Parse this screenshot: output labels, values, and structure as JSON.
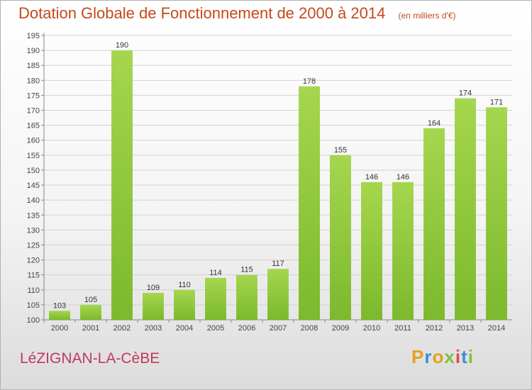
{
  "header": {
    "title": "Dotation Globale de Fonctionnement de 2000 à 2014",
    "unit": "(en milliers d'€)"
  },
  "footer": {
    "commune": "LéZIGNAN-LA-CèBE",
    "brand": "Proxiti",
    "brand_colors": [
      "#e2a21b",
      "#3a8fd6",
      "#e2a21b",
      "#7cc242",
      "#e34a4a",
      "#3a8fd6",
      "#7cc242"
    ]
  },
  "colors": {
    "bar": "#7cb92c",
    "bar_top": "#a5d64e",
    "title": "#c44a1a",
    "commune": "#c0395e"
  },
  "chart_data": {
    "type": "bar",
    "title": "Dotation Globale de Fonctionnement de 2000 à 2014",
    "categories": [
      "2000",
      "2001",
      "2002",
      "2003",
      "2004",
      "2005",
      "2006",
      "2007",
      "2008",
      "2009",
      "2010",
      "2011",
      "2012",
      "2013",
      "2014"
    ],
    "values": [
      103,
      105,
      190,
      109,
      110,
      114,
      115,
      117,
      178,
      155,
      146,
      146,
      164,
      174,
      171
    ],
    "ylim": [
      100,
      195
    ],
    "ytick_step": 5,
    "grid": true,
    "xlabel": "",
    "ylabel": ""
  }
}
